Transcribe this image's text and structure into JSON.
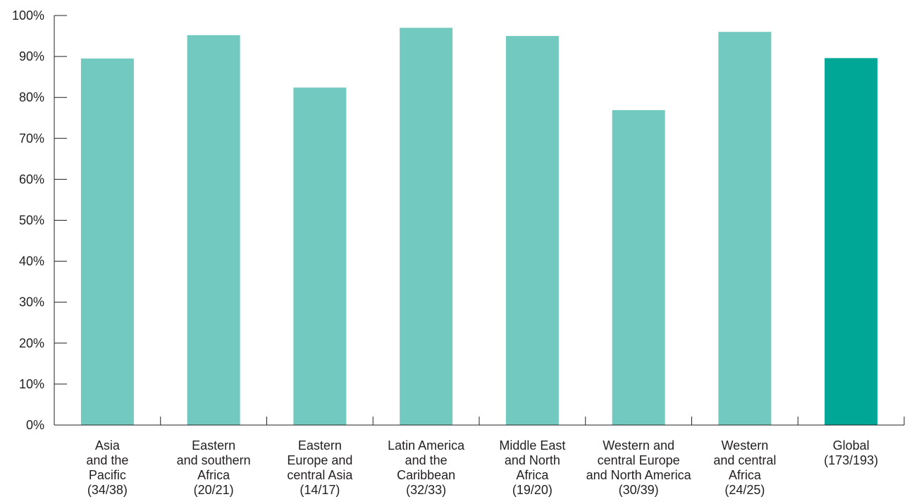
{
  "chart_data": {
    "type": "bar",
    "title": "",
    "xlabel": "",
    "ylabel": "",
    "ylim": [
      0,
      100
    ],
    "y_ticks": [
      "0%",
      "10%",
      "20%",
      "30%",
      "40%",
      "50%",
      "60%",
      "70%",
      "80%",
      "90%",
      "100%"
    ],
    "categories": [
      [
        "Asia",
        "and the",
        "Pacific",
        "(34/38)"
      ],
      [
        "Eastern",
        "and southern",
        "Africa",
        "(20/21)"
      ],
      [
        "Eastern",
        "Europe and",
        "central Asia",
        "(14/17)"
      ],
      [
        "Latin America",
        "and the",
        "Caribbean",
        "(32/33)"
      ],
      [
        "Middle East",
        "and North",
        "Africa",
        "(19/20)"
      ],
      [
        "Western and",
        "central Europe",
        "and North America",
        "(30/39)"
      ],
      [
        "Western",
        "and central",
        "Africa",
        "(24/25)"
      ],
      [
        "Global",
        "(173/193)"
      ]
    ],
    "values": [
      89.5,
      95.2,
      82.4,
      97.0,
      95.0,
      76.9,
      96.0,
      89.6
    ],
    "colors": [
      "#72c9bf",
      "#72c9bf",
      "#72c9bf",
      "#72c9bf",
      "#72c9bf",
      "#72c9bf",
      "#72c9bf",
      "#00a796"
    ],
    "grid": false,
    "legend": "none"
  }
}
